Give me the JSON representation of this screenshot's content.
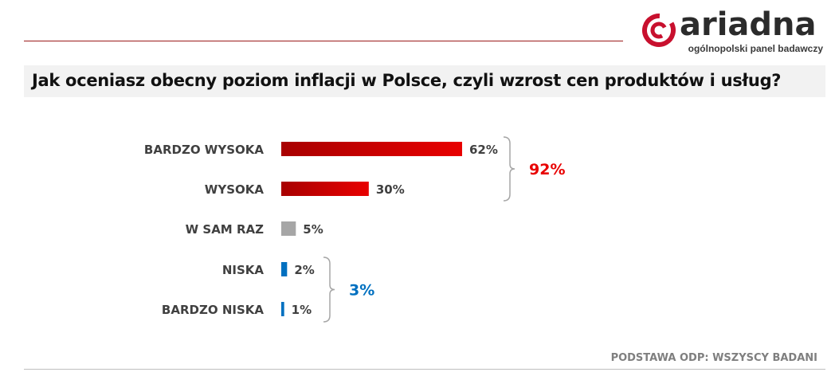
{
  "header": {
    "logo_text": "ariadna",
    "logo_subtitle": "ogólnopolski panel badawczy",
    "question": "Jak oceniasz obecny poziom inflacji w Polsce, czyli wzrost cen produktów i usług?"
  },
  "footer": {
    "note": "PODSTAWA ODP: WSZYSCY BADANI"
  },
  "colors": {
    "high": "#e80000",
    "high_dark": "#a80000",
    "neutral": "#a6a6a6",
    "low": "#0070c0",
    "bracket": "#a6a6a6"
  },
  "chart_data": {
    "type": "bar",
    "orientation": "horizontal",
    "categories": [
      "BARDZO WYSOKA",
      "WYSOKA",
      "W SAM RAZ",
      "NISKA",
      "BARDZO NISKA"
    ],
    "values": [
      62,
      30,
      5,
      2,
      1
    ],
    "value_labels": [
      "62%",
      "30%",
      "5%",
      "2%",
      "1%"
    ],
    "groups": [
      {
        "label": "92%",
        "members": [
          0,
          1
        ],
        "color": "#e80000"
      },
      {
        "label": "3%",
        "members": [
          3,
          4
        ],
        "color": "#0070c0"
      }
    ],
    "bar_colors": [
      "high",
      "high",
      "neutral",
      "low",
      "low"
    ],
    "title": "",
    "xlabel": "",
    "ylabel": "",
    "xlim": [
      0,
      100
    ],
    "grid": false,
    "legend": "none"
  }
}
